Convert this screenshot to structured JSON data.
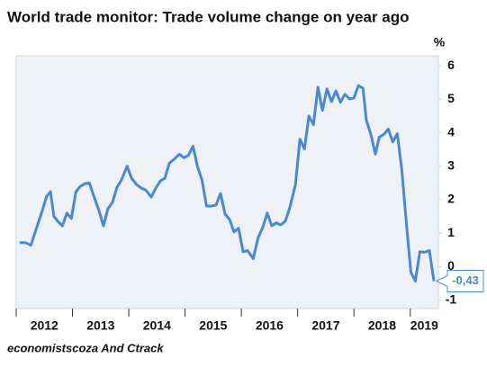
{
  "chart_data": {
    "type": "line",
    "title": "World trade monitor: Trade volume change on year ago",
    "y_label": "%",
    "source": "economistscoza And Ctrack",
    "annotation": "-0,43",
    "x": [
      2012.06,
      2012.16,
      2012.26,
      2012.35,
      2012.45,
      2012.54,
      2012.61,
      2012.67,
      2012.74,
      2012.82,
      2012.9,
      2012.98,
      2013.06,
      2013.14,
      2013.22,
      2013.3,
      2013.38,
      2013.47,
      2013.55,
      2013.63,
      2013.71,
      2013.79,
      2013.87,
      2013.97,
      2014.05,
      2014.14,
      2014.22,
      2014.3,
      2014.4,
      2014.48,
      2014.56,
      2014.64,
      2014.72,
      2014.8,
      2014.9,
      2014.98,
      2015.06,
      2015.14,
      2015.22,
      2015.3,
      2015.38,
      2015.46,
      2015.55,
      2015.63,
      2015.71,
      2015.79,
      2015.87,
      2015.95,
      2016.03,
      2016.11,
      2016.21,
      2016.3,
      2016.38,
      2016.46,
      2016.54,
      2016.62,
      2016.7,
      2016.78,
      2016.86,
      2016.96,
      2017.04,
      2017.12,
      2017.2,
      2017.28,
      2017.36,
      2017.44,
      2017.52,
      2017.6,
      2017.68,
      2017.76,
      2017.84,
      2017.92,
      2018.0,
      2018.08,
      2018.16,
      2018.22,
      2018.3,
      2018.38,
      2018.45,
      2018.53,
      2018.61,
      2018.69,
      2018.77,
      2018.85,
      2018.93,
      2019.01,
      2019.09,
      2019.17,
      2019.25,
      2019.34,
      2019.42
    ],
    "series": [
      {
        "name": "Trade volume change",
        "color": "#4a88d0",
        "values": [
          0.72,
          0.72,
          0.64,
          1.1,
          1.6,
          2.1,
          2.24,
          1.5,
          1.35,
          1.22,
          1.6,
          1.44,
          2.24,
          2.4,
          2.48,
          2.5,
          2.1,
          1.68,
          1.22,
          1.73,
          1.92,
          2.37,
          2.59,
          3.0,
          2.64,
          2.45,
          2.35,
          2.29,
          2.08,
          2.35,
          2.56,
          2.64,
          3.09,
          3.2,
          3.36,
          3.25,
          3.33,
          3.6,
          2.99,
          2.59,
          1.81,
          1.81,
          1.84,
          2.19,
          1.57,
          1.41,
          1.04,
          1.15,
          0.45,
          0.48,
          0.24,
          0.88,
          1.17,
          1.6,
          1.22,
          1.31,
          1.25,
          1.36,
          1.76,
          2.45,
          3.81,
          3.52,
          4.5,
          4.24,
          5.36,
          4.67,
          5.31,
          4.93,
          5.25,
          4.91,
          5.15,
          5.01,
          5.04,
          5.41,
          5.33,
          4.37,
          3.95,
          3.36,
          3.87,
          3.95,
          4.11,
          3.73,
          3.97,
          2.88,
          1.31,
          -0.16,
          -0.43,
          0.45,
          0.43,
          0.48,
          -0.43
        ]
      }
    ],
    "xlim": [
      2012,
      2019.5
    ],
    "xticks": [
      2012,
      2013,
      2014,
      2015,
      2016,
      2017,
      2018,
      2019
    ],
    "ylim": [
      -1.25,
      6.3
    ],
    "yticks": [
      -1,
      0,
      1,
      2,
      3,
      4,
      5,
      6
    ],
    "grid": false
  }
}
